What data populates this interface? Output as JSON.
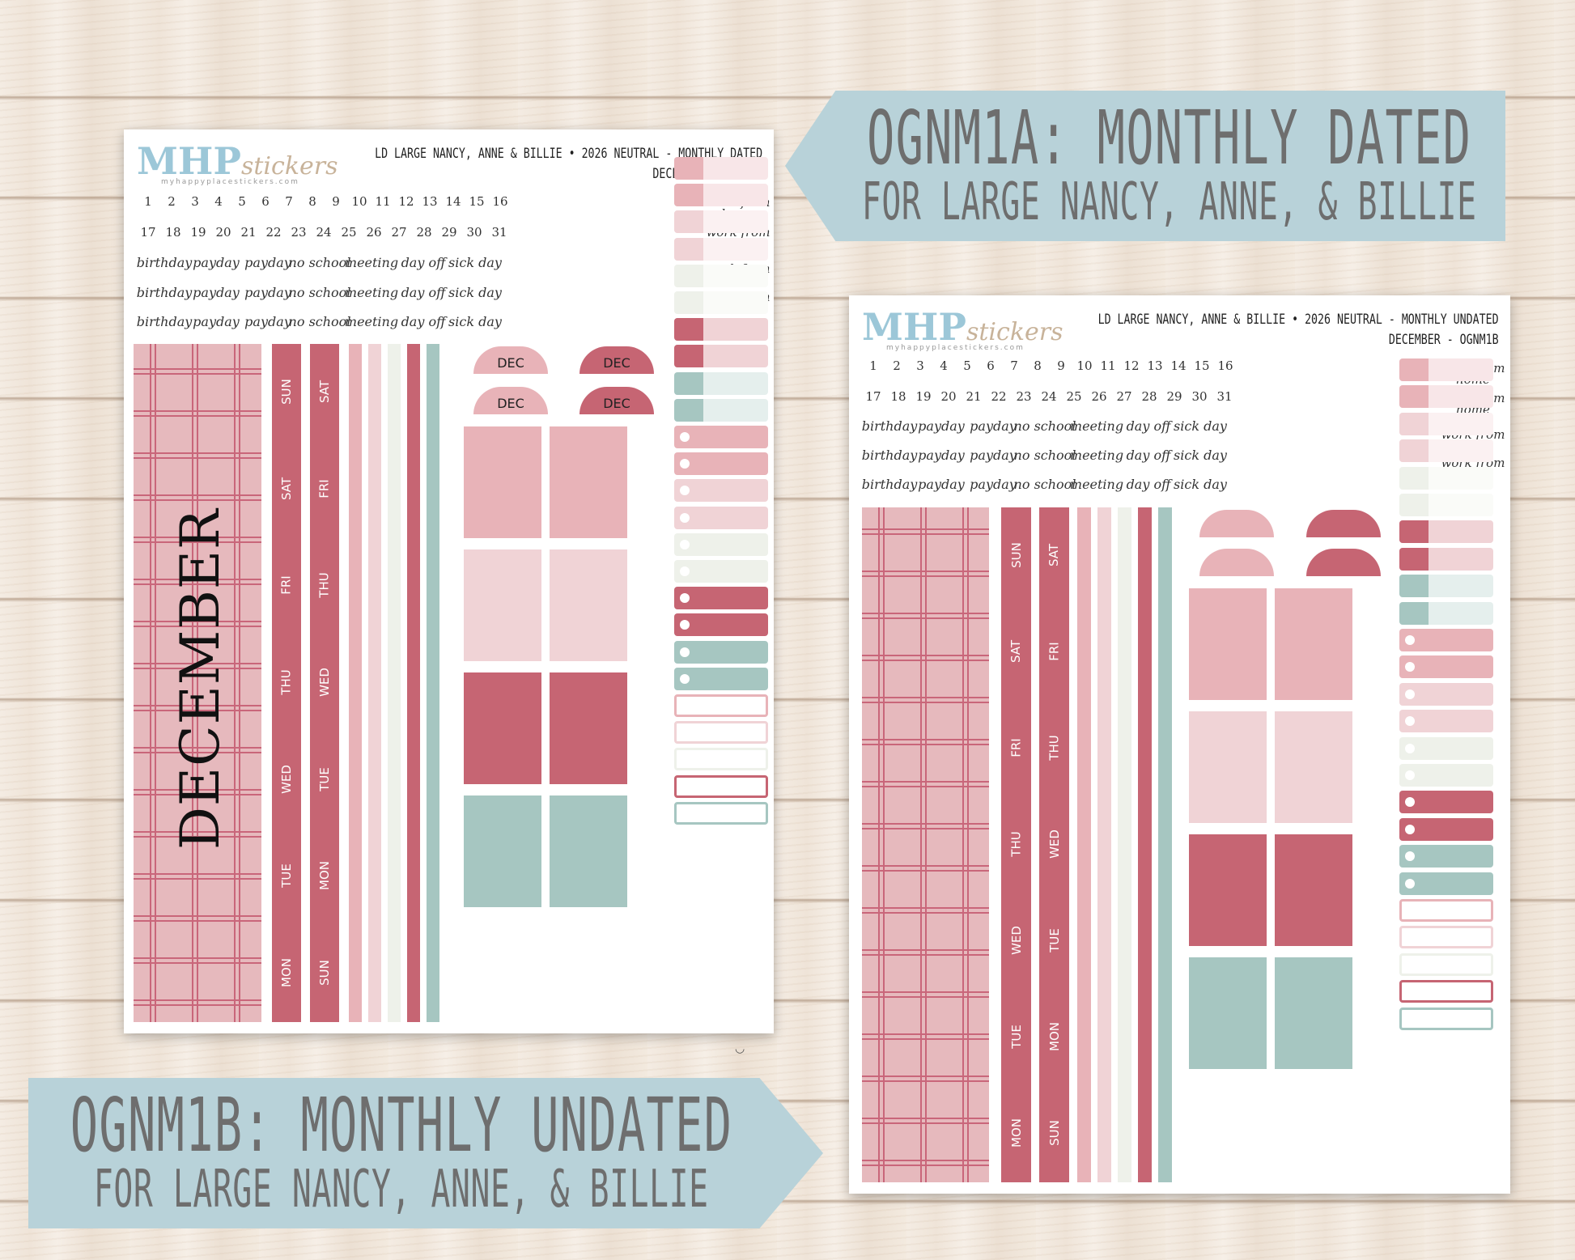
{
  "banner_a": {
    "title": "OGNM1A: MONTHLY DATED",
    "subtitle": "FOR LARGE NANCY, ANNE, & BILLIE"
  },
  "banner_b": {
    "title": "OGNM1B: MONTHLY UNDATED",
    "subtitle": "FOR LARGE NANCY, ANNE, & BILLIE"
  },
  "logo": {
    "brand": "MHP",
    "script": "stickers",
    "url": "myhappyplacestickers.com"
  },
  "sheet_a": {
    "title_line1": "LD LARGE NANCY, ANNE & BILLIE • 2026 NEUTRAL - MONTHLY DATED",
    "title_line2": "DECEMBER - OGNM1A",
    "month_word": "DECEMBER",
    "half_label": "DEC"
  },
  "sheet_b": {
    "title_line1": "LD LARGE NANCY, ANNE & BILLIE • 2026 NEUTRAL - MONTHLY UNDATED",
    "title_line2": "DECEMBER - OGNM1B"
  },
  "dates_row1": [
    "1",
    "2",
    "3",
    "4",
    "5",
    "6",
    "7",
    "8",
    "9",
    "10",
    "11",
    "12",
    "13",
    "14",
    "15",
    "16"
  ],
  "dates_row2": [
    "17",
    "18",
    "19",
    "20",
    "21",
    "22",
    "23",
    "24",
    "25",
    "26",
    "27",
    "28",
    "29",
    "30",
    "31"
  ],
  "word_row": [
    "birthday",
    "payday",
    "payday",
    "no school",
    "meeting",
    "day off",
    "sick day"
  ],
  "wfh": "work from home",
  "strip_a": [
    "SUN",
    "SAT",
    "FRI",
    "THU",
    "WED",
    "TUE",
    "MON"
  ],
  "strip_b": [
    "SAT",
    "FRI",
    "THU",
    "WED",
    "TUE",
    "MON",
    "SUN"
  ],
  "colors": {
    "rose": "#c66573",
    "blush": "#e8b3b8",
    "pale_pink": "#f0d3d6",
    "sage": "#a6c6c1",
    "cream": "#eef1ea",
    "banner": "#b8d2d9"
  }
}
